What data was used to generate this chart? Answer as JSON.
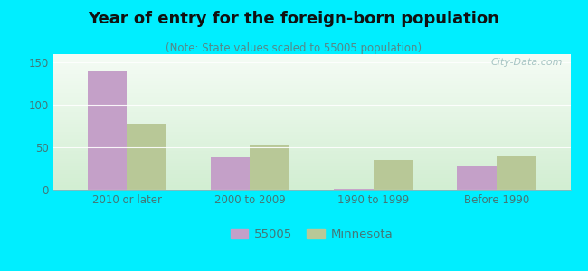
{
  "title": "Year of entry for the foreign-born population",
  "subtitle": "(Note: State values scaled to 55005 population)",
  "categories": [
    "2010 or later",
    "2000 to 2009",
    "1990 to 1999",
    "Before 1990"
  ],
  "values_55005": [
    140,
    38,
    1,
    28
  ],
  "values_minnesota": [
    78,
    52,
    35,
    39
  ],
  "color_55005": "#c4a0c8",
  "color_minnesota": "#b8c897",
  "bar_width": 0.32,
  "ylim": [
    0,
    160
  ],
  "yticks": [
    0,
    50,
    100,
    150
  ],
  "background_color": "#00eeff",
  "plot_bg_top": "#f5faf5",
  "plot_bg_bottom": "#d8f0d8",
  "title_fontsize": 13,
  "subtitle_fontsize": 8.5,
  "tick_label_color": "#447777",
  "watermark": "City-Data.com",
  "legend_label_55005": "55005",
  "legend_label_mn": "Minnesota"
}
